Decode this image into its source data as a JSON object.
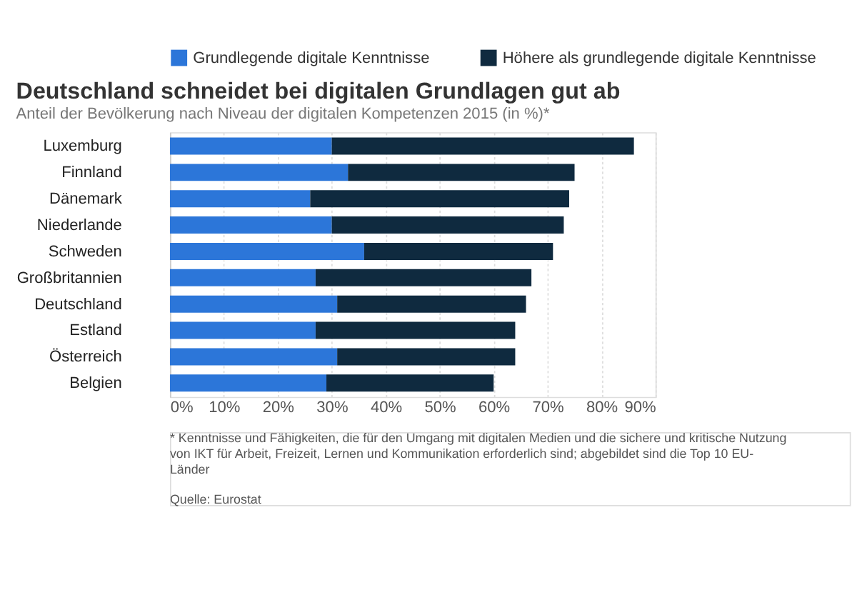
{
  "chart_data": {
    "type": "bar",
    "orientation": "horizontal",
    "stacked": true,
    "title": "Deutschland schneidet bei digitalen Grundlagen gut ab",
    "subtitle": "Anteil der Bevölkerung nach Niveau der digitalen Kompetenzen 2015 (in %)*",
    "categories": [
      "Luxemburg",
      "Finnland",
      "Dänemark",
      "Niederlande",
      "Schweden",
      "Großbritannien",
      "Deutschland",
      "Estland",
      "Österreich",
      "Belgien"
    ],
    "series": [
      {
        "name": "Grundlegende digitale Kenntnisse",
        "color": "#2c76d9",
        "values": [
          30,
          33,
          26,
          30,
          36,
          27,
          31,
          27,
          31,
          29
        ]
      },
      {
        "name": "Höhere als grundlegende digitale Kenntnisse",
        "color": "#0f2a3f",
        "values": [
          56,
          42,
          48,
          43,
          35,
          40,
          35,
          37,
          33,
          31
        ]
      }
    ],
    "xlim": [
      0,
      90
    ],
    "xticks": [
      {
        "value": 0,
        "label": "0%"
      },
      {
        "value": 10,
        "label": "10%"
      },
      {
        "value": 20,
        "label": "20%"
      },
      {
        "value": 30,
        "label": "30%"
      },
      {
        "value": 40,
        "label": "40%"
      },
      {
        "value": 50,
        "label": "50%"
      },
      {
        "value": 60,
        "label": "60%"
      },
      {
        "value": 70,
        "label": "70%"
      },
      {
        "value": 80,
        "label": "80%"
      },
      {
        "value": 90,
        "label": "90%"
      }
    ],
    "grid": "x",
    "legend": "top",
    "annotations": [
      "* Kenntnisse und Fähigkeiten, die für den Umgang mit digitalen Medien und die sichere und kritische Nutzung von IKT für Arbeit, Freizeit, Lernen und Kommunikation erforderlich sind; abgebildet sind die Top 10 EU-Länder",
      "Quelle: Eurostat"
    ]
  }
}
